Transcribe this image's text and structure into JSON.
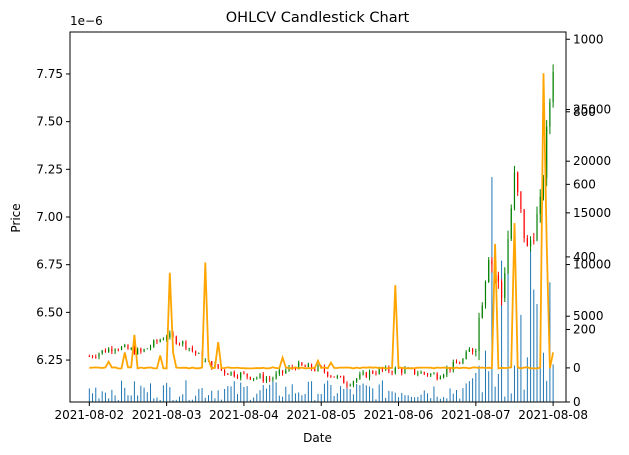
{
  "chart_data": {
    "type": "candlestick",
    "title": "OHLCV Candlestick Chart",
    "xlabel": "Date",
    "ylabel": "Price",
    "offset_label": "1e−6",
    "x_ticks": [
      "2021-08-02",
      "2021-08-03",
      "2021-08-04",
      "2021-08-05",
      "2021-08-06",
      "2021-08-07",
      "2021-08-08"
    ],
    "xlim": [
      "2021-08-01T18:00",
      "2021-08-08T04:00"
    ],
    "price_axis": {
      "ylim": [
        6.03,
        7.97
      ],
      "ticks": [
        6.25,
        6.5,
        6.75,
        7.0,
        7.25,
        7.5,
        7.75
      ],
      "tick_labels": [
        "6.25",
        "6.50",
        "6.75",
        "7.00",
        "7.25",
        "7.50",
        "7.75"
      ],
      "scale": 1e-06
    },
    "volume_axis": {
      "ylim": [
        0,
        1020
      ],
      "ticks": [
        0,
        200,
        400,
        600,
        800,
        1000
      ],
      "tick_labels": [
        "0",
        "200",
        "400",
        "600",
        "800",
        "1000"
      ]
    },
    "trades_axis": {
      "ylim": [
        -3300,
        32500
      ],
      "ticks": [
        0,
        5000,
        10000,
        15000,
        20000,
        25000
      ],
      "tick_labels": [
        "0",
        "5000",
        "10000",
        "15000",
        "20000",
        "25000"
      ]
    },
    "price_path": [
      {
        "date": "2021-08-02T00:00",
        "price": 6.27
      },
      {
        "date": "2021-08-02T08:00",
        "price": 6.32
      },
      {
        "date": "2021-08-02T16:00",
        "price": 6.29
      },
      {
        "date": "2021-08-03T00:00",
        "price": 6.38
      },
      {
        "date": "2021-08-03T06:00",
        "price": 6.33
      },
      {
        "date": "2021-08-03T12:00",
        "price": 6.24
      },
      {
        "date": "2021-08-03T18:00",
        "price": 6.19
      },
      {
        "date": "2021-08-04T00:00",
        "price": 6.17
      },
      {
        "date": "2021-08-04T08:00",
        "price": 6.15
      },
      {
        "date": "2021-08-04T16:00",
        "price": 6.22
      },
      {
        "date": "2021-08-05T00:00",
        "price": 6.2
      },
      {
        "date": "2021-08-05T08:00",
        "price": 6.13
      },
      {
        "date": "2021-08-05T16:00",
        "price": 6.19
      },
      {
        "date": "2021-08-06T00:00",
        "price": 6.2
      },
      {
        "date": "2021-08-06T12:00",
        "price": 6.17
      },
      {
        "date": "2021-08-06T20:00",
        "price": 6.25
      },
      {
        "date": "2021-08-07T00:00",
        "price": 6.35
      },
      {
        "date": "2021-08-07T04:00",
        "price": 6.82
      },
      {
        "date": "2021-08-07T08:00",
        "price": 6.58
      },
      {
        "date": "2021-08-07T12:00",
        "price": 7.2
      },
      {
        "date": "2021-08-07T16:00",
        "price": 6.82
      },
      {
        "date": "2021-08-07T20:00",
        "price": 7.05
      },
      {
        "date": "2021-08-08T00:00",
        "price": 7.8
      }
    ],
    "trades_spikes": [
      {
        "date": "2021-08-02T06:00",
        "value": 600
      },
      {
        "date": "2021-08-02T11:00",
        "value": 1500
      },
      {
        "date": "2021-08-02T14:00",
        "value": 3200
      },
      {
        "date": "2021-08-02T22:00",
        "value": 1200
      },
      {
        "date": "2021-08-03T01:00",
        "value": 9200
      },
      {
        "date": "2021-08-03T02:00",
        "value": 1500
      },
      {
        "date": "2021-08-03T12:00",
        "value": 10200
      },
      {
        "date": "2021-08-03T13:00",
        "value": 800
      },
      {
        "date": "2021-08-03T16:00",
        "value": 2500
      },
      {
        "date": "2021-08-04T12:00",
        "value": 1000
      },
      {
        "date": "2021-08-04T23:00",
        "value": 700
      },
      {
        "date": "2021-08-05T03:00",
        "value": 500
      },
      {
        "date": "2021-08-05T23:00",
        "value": 8000
      },
      {
        "date": "2021-08-07T06:00",
        "value": 12000
      },
      {
        "date": "2021-08-07T12:00",
        "value": 14000
      },
      {
        "date": "2021-08-07T21:00",
        "value": 28500
      },
      {
        "date": "2021-08-07T22:00",
        "value": 12000
      },
      {
        "date": "2021-08-08T00:00",
        "value": 1500
      }
    ],
    "volume_spikes": [
      {
        "date": "2021-08-07T05:00",
        "value": 620
      },
      {
        "date": "2021-08-07T08:00",
        "value": 390
      },
      {
        "date": "2021-08-07T10:00",
        "value": 410
      },
      {
        "date": "2021-08-07T17:00",
        "value": 420
      },
      {
        "date": "2021-08-07T18:00",
        "value": 310
      },
      {
        "date": "2021-08-07T23:00",
        "value": 330
      },
      {
        "date": "2021-08-07T19:00",
        "value": 270
      },
      {
        "date": "2021-08-07T14:00",
        "value": 240
      }
    ],
    "colors": {
      "up": "#008000",
      "down": "#ff0000",
      "volume": "#1f77b4",
      "trades": "#ffa500"
    }
  }
}
